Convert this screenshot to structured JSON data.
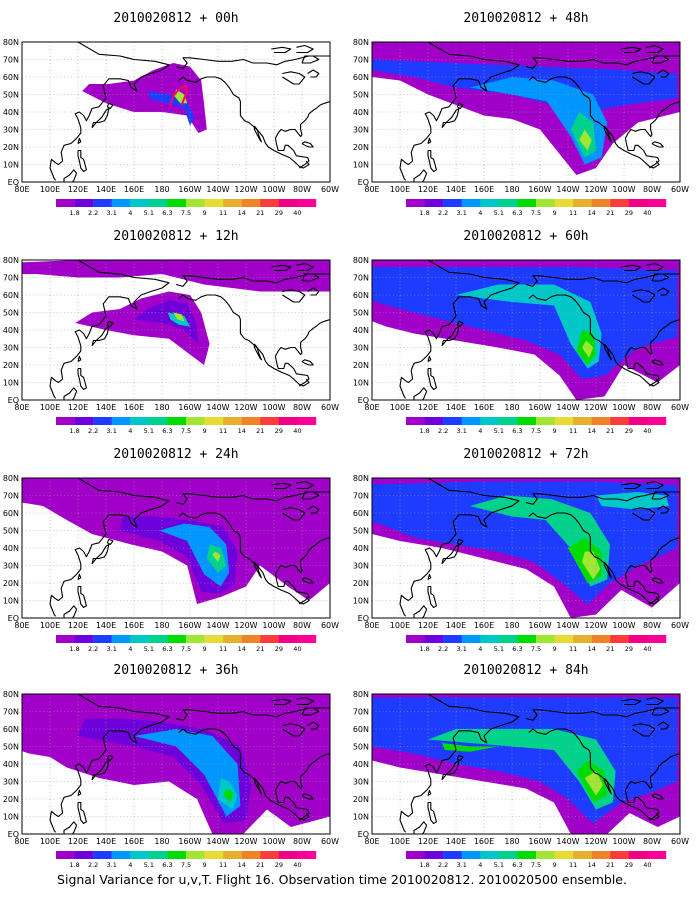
{
  "caption": "Signal Variance for u,v,T. Flight 16. Observation time 2010020812. 2010020500 ensemble.",
  "colors": {
    "land_outline": "#000000",
    "grid": "#999999",
    "track": "#ff0066"
  },
  "latitude_labels": [
    "80N",
    "70N",
    "60N",
    "50N",
    "40N",
    "30N",
    "20N",
    "10N",
    "EQ"
  ],
  "longitude_labels": [
    "80E",
    "100E",
    "120E",
    "140E",
    "160E",
    "180",
    "160W",
    "140W",
    "120W",
    "100W",
    "80W",
    "60W"
  ],
  "colorbar": {
    "labels": [
      "1.8",
      "2.2",
      "3.1",
      "4",
      "5.1",
      "6.3",
      "7.5",
      "9",
      "11",
      "14",
      "21",
      "29",
      "40"
    ],
    "colors": [
      "#a000c8",
      "#6e00dc",
      "#1e3cff",
      "#0096ff",
      "#00c8c8",
      "#00d28c",
      "#00dc00",
      "#a0e632",
      "#e6dc32",
      "#e6af2d",
      "#f08228",
      "#fa3c3c",
      "#f00082",
      "#ff0096"
    ]
  },
  "panels": [
    {
      "title": "2010020812 + 00h",
      "lead_hours": 0
    },
    {
      "title": "2010020812 + 48h",
      "lead_hours": 48
    },
    {
      "title": "2010020812 + 12h",
      "lead_hours": 12
    },
    {
      "title": "2010020812 + 60h",
      "lead_hours": 60
    },
    {
      "title": "2010020812 + 24h",
      "lead_hours": 24
    },
    {
      "title": "2010020812 + 72h",
      "lead_hours": 72
    },
    {
      "title": "2010020812 + 36h",
      "lead_hours": 36
    },
    {
      "title": "2010020812 + 84h",
      "lead_hours": 84
    }
  ]
}
